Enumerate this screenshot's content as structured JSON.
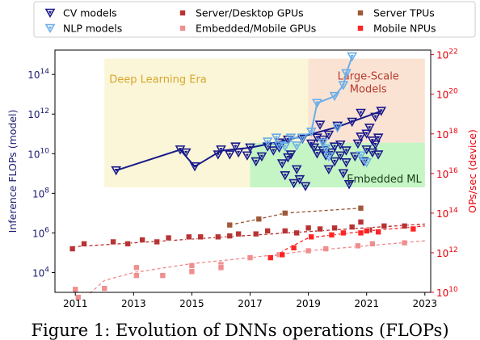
{
  "caption": "Figure 1: Evolution of DNNs operations (FLOPs)",
  "chart_data": {
    "type": "scatter",
    "x_ticks": [
      "2011",
      "2013",
      "2015",
      "2017",
      "2019",
      "2021",
      "2023"
    ],
    "x_range": [
      2010.3,
      2023.2
    ],
    "left_axis": {
      "label": "Inference FLOPs (model)",
      "scale": "log10",
      "range_exp": [
        3.0,
        15.23
      ],
      "ticks": [
        {
          "exp": 4,
          "label": "10^4"
        },
        {
          "exp": 6,
          "label": "10^6"
        },
        {
          "exp": 8,
          "label": "10^8"
        },
        {
          "exp": 10,
          "label": "10^10"
        },
        {
          "exp": 12,
          "label": "10^12"
        },
        {
          "exp": 14,
          "label": "10^14"
        }
      ],
      "color": "#1a1a6e"
    },
    "right_axis": {
      "label": "OPs/sec (device)",
      "scale": "log10",
      "range_exp": [
        10.0,
        22.23
      ],
      "ticks": [
        {
          "exp": 10,
          "label": "10^10"
        },
        {
          "exp": 12,
          "label": "10^12"
        },
        {
          "exp": 14,
          "label": "10^14"
        },
        {
          "exp": 16,
          "label": "10^16"
        },
        {
          "exp": 18,
          "label": "10^18"
        },
        {
          "exp": 20,
          "label": "10^20"
        },
        {
          "exp": 22,
          "label": "10^22"
        }
      ],
      "color": "#e8000b"
    },
    "regions": [
      {
        "label": "Deep Learning Era",
        "x": [
          2012.0,
          2023.0
        ],
        "y_exp": [
          8.3,
          14.8
        ],
        "color": "#faf6d7",
        "label_color": "#d9a62e",
        "label_pos": "top-left"
      },
      {
        "label": "Large-Scale Models",
        "x": [
          2019.0,
          2023.0
        ],
        "y_exp": [
          10.55,
          14.8
        ],
        "color": "#fbe3d4",
        "label_color": "#b23a2e",
        "label_pos": "top-right"
      },
      {
        "label": "Embedded ML",
        "x": [
          2017.0,
          2023.0
        ],
        "y_exp": [
          8.3,
          10.55
        ],
        "color": "#c5f5c5",
        "label_color": "#1a3d1a",
        "label_pos": "bottom-right"
      }
    ],
    "legend": [
      {
        "name": "CV models",
        "marker": "tri",
        "color": "#1a1a8c"
      },
      {
        "name": "Server/Desktop GPUs",
        "marker": "square",
        "color": "#b52a2a"
      },
      {
        "name": "Server TPUs",
        "marker": "square",
        "color": "#9a5230"
      },
      {
        "name": "NLP models",
        "marker": "tri",
        "color": "#6aaee8"
      },
      {
        "name": "Embedded/Mobile GPUs",
        "marker": "square",
        "color": "#ef8a8a"
      },
      {
        "name": "Mobile NPUs",
        "marker": "square",
        "color": "#ff1a1a"
      }
    ],
    "series": [
      {
        "name": "CV models",
        "axis": "left",
        "marker": "tri",
        "color": "#1a1a8c",
        "trend": [
          [
            2012.4,
            9.15
          ],
          [
            2014.6,
            10.2
          ],
          [
            2015.1,
            9.35
          ],
          [
            2016.0,
            10.15
          ],
          [
            2017.0,
            10.3
          ],
          [
            2018.0,
            10.6
          ],
          [
            2019.0,
            10.95
          ],
          [
            2020.0,
            11.35
          ],
          [
            2021.5,
            12.15
          ]
        ],
        "points": [
          [
            2012.4,
            9.15
          ],
          [
            2014.6,
            10.2
          ],
          [
            2014.8,
            10.05
          ],
          [
            2015.1,
            9.35
          ],
          [
            2015.9,
            9.95
          ],
          [
            2016.0,
            10.2
          ],
          [
            2016.3,
            9.95
          ],
          [
            2016.5,
            10.35
          ],
          [
            2016.6,
            10.05
          ],
          [
            2016.9,
            9.9
          ],
          [
            2017.0,
            10.3
          ],
          [
            2017.2,
            9.6
          ],
          [
            2017.4,
            9.85
          ],
          [
            2017.6,
            10.35
          ],
          [
            2017.8,
            10.15
          ],
          [
            2018.0,
            10.55
          ],
          [
            2018.0,
            10.3
          ],
          [
            2018.1,
            9.5
          ],
          [
            2018.2,
            8.9
          ],
          [
            2018.3,
            9.8
          ],
          [
            2018.3,
            10.7
          ],
          [
            2018.4,
            9.95
          ],
          [
            2018.5,
            8.5
          ],
          [
            2018.6,
            9.2
          ],
          [
            2018.7,
            8.7
          ],
          [
            2018.8,
            10.75
          ],
          [
            2018.9,
            8.35
          ],
          [
            2019.1,
            10.5
          ],
          [
            2019.2,
            10.3
          ],
          [
            2019.3,
            10.0
          ],
          [
            2019.3,
            10.8
          ],
          [
            2019.4,
            11.45
          ],
          [
            2019.5,
            10.15
          ],
          [
            2019.5,
            10.7
          ],
          [
            2019.6,
            9.9
          ],
          [
            2019.7,
            9.2
          ],
          [
            2019.7,
            10.95
          ],
          [
            2019.8,
            10.05
          ],
          [
            2019.9,
            9.6
          ],
          [
            2019.9,
            10.35
          ],
          [
            2020.0,
            11.4
          ],
          [
            2020.1,
            9.9
          ],
          [
            2020.1,
            10.45
          ],
          [
            2020.2,
            9.0
          ],
          [
            2020.3,
            9.55
          ],
          [
            2020.3,
            10.15
          ],
          [
            2020.4,
            8.45
          ],
          [
            2020.5,
            11.6
          ],
          [
            2020.6,
            9.85
          ],
          [
            2020.7,
            10.5
          ],
          [
            2020.8,
            12.05
          ],
          [
            2020.8,
            10.85
          ],
          [
            2020.9,
            9.6
          ],
          [
            2021.0,
            10.2
          ],
          [
            2021.0,
            11.0
          ],
          [
            2021.1,
            11.3
          ],
          [
            2021.2,
            10.65
          ],
          [
            2021.2,
            10.05
          ],
          [
            2021.3,
            11.85
          ],
          [
            2021.3,
            10.45
          ],
          [
            2021.4,
            9.95
          ],
          [
            2021.4,
            10.8
          ],
          [
            2021.5,
            12.15
          ]
        ]
      },
      {
        "name": "NLP models",
        "axis": "left",
        "marker": "tri",
        "color": "#6aaee8",
        "trend": [
          [
            2017.6,
            10.6
          ],
          [
            2018.0,
            10.4
          ],
          [
            2018.4,
            10.8
          ],
          [
            2018.8,
            10.8
          ],
          [
            2019.1,
            11.1
          ],
          [
            2019.3,
            12.55
          ],
          [
            2019.9,
            12.9
          ],
          [
            2020.2,
            13.45
          ],
          [
            2020.3,
            14.05
          ],
          [
            2020.5,
            14.9
          ]
        ],
        "points": [
          [
            2017.6,
            10.6
          ],
          [
            2017.9,
            10.8
          ],
          [
            2018.0,
            10.4
          ],
          [
            2018.2,
            10.35
          ],
          [
            2018.4,
            10.8
          ],
          [
            2018.6,
            10.4
          ],
          [
            2018.8,
            10.8
          ],
          [
            2019.1,
            11.1
          ],
          [
            2019.3,
            12.55
          ],
          [
            2019.5,
            10.55
          ],
          [
            2019.6,
            10.25
          ],
          [
            2019.7,
            9.85
          ],
          [
            2019.9,
            12.9
          ],
          [
            2020.0,
            11.3
          ],
          [
            2020.2,
            13.45
          ],
          [
            2020.3,
            14.05
          ],
          [
            2020.5,
            14.9
          ],
          [
            2020.8,
            9.9
          ],
          [
            2021.0,
            9.55
          ]
        ]
      },
      {
        "name": "Server/Desktop GPUs",
        "axis": "right",
        "marker": "square",
        "color": "#b52a2a",
        "trend": [
          [
            2010.9,
            12.3
          ],
          [
            2023.0,
            13.45
          ]
        ],
        "points": [
          [
            2010.9,
            12.2
          ],
          [
            2011.3,
            12.45
          ],
          [
            2012.3,
            12.55
          ],
          [
            2012.8,
            12.45
          ],
          [
            2013.3,
            12.65
          ],
          [
            2013.8,
            12.55
          ],
          [
            2014.2,
            12.75
          ],
          [
            2014.9,
            12.8
          ],
          [
            2015.3,
            12.8
          ],
          [
            2015.9,
            12.8
          ],
          [
            2016.3,
            12.85
          ],
          [
            2016.6,
            12.95
          ],
          [
            2017.2,
            12.95
          ],
          [
            2017.6,
            13.1
          ],
          [
            2018.2,
            13.1
          ],
          [
            2018.6,
            13.0
          ],
          [
            2019.0,
            13.25
          ],
          [
            2019.4,
            13.2
          ],
          [
            2019.9,
            13.25
          ],
          [
            2020.5,
            13.3
          ],
          [
            2020.8,
            13.55
          ],
          [
            2021.1,
            13.15
          ],
          [
            2021.6,
            13.35
          ],
          [
            2022.3,
            13.35
          ]
        ]
      },
      {
        "name": "Server TPUs",
        "axis": "right",
        "marker": "square",
        "color": "#9a5230",
        "trend": [
          [
            2016.3,
            13.4
          ],
          [
            2017.3,
            13.7
          ],
          [
            2018.2,
            14.0
          ],
          [
            2020.8,
            14.25
          ]
        ],
        "points": [
          [
            2016.3,
            13.4
          ],
          [
            2017.3,
            13.7
          ],
          [
            2018.2,
            14.0
          ],
          [
            2020.8,
            14.25
          ]
        ]
      },
      {
        "name": "Embedded/Mobile GPUs",
        "axis": "right",
        "marker": "square",
        "color": "#ef8a8a",
        "trend": [
          [
            2011.5,
            9.95
          ],
          [
            2012.0,
            10.6
          ],
          [
            2013.0,
            11.0
          ],
          [
            2015.0,
            11.45
          ],
          [
            2017.0,
            11.75
          ],
          [
            2019.0,
            12.1
          ],
          [
            2021.0,
            12.35
          ],
          [
            2023.0,
            12.6
          ]
        ],
        "points": [
          [
            2011.0,
            10.15
          ],
          [
            2011.1,
            9.75
          ],
          [
            2012.0,
            10.2
          ],
          [
            2013.1,
            11.25
          ],
          [
            2013.1,
            10.85
          ],
          [
            2014.0,
            10.85
          ],
          [
            2015.0,
            11.35
          ],
          [
            2015.0,
            11.05
          ],
          [
            2016.0,
            11.4
          ],
          [
            2016.0,
            11.25
          ],
          [
            2017.0,
            11.75
          ],
          [
            2018.0,
            11.9
          ],
          [
            2019.0,
            12.1
          ],
          [
            2019.6,
            12.2
          ],
          [
            2020.7,
            12.35
          ],
          [
            2021.2,
            12.45
          ],
          [
            2022.3,
            12.5
          ]
        ]
      },
      {
        "name": "Mobile NPUs",
        "axis": "right",
        "marker": "square",
        "color": "#ff1a1a",
        "trend": [
          [
            2017.7,
            11.7
          ],
          [
            2018.2,
            12.15
          ],
          [
            2019.0,
            12.75
          ],
          [
            2021.0,
            13.1
          ],
          [
            2023.0,
            13.35
          ]
        ],
        "points": [
          [
            2017.7,
            11.75
          ],
          [
            2018.1,
            11.9
          ],
          [
            2018.5,
            12.25
          ],
          [
            2019.1,
            12.8
          ],
          [
            2019.8,
            12.9
          ],
          [
            2020.2,
            13.0
          ],
          [
            2020.8,
            13.0
          ],
          [
            2021.0,
            13.1
          ],
          [
            2021.4,
            13.05
          ],
          [
            2022.6,
            13.2
          ]
        ]
      }
    ]
  }
}
